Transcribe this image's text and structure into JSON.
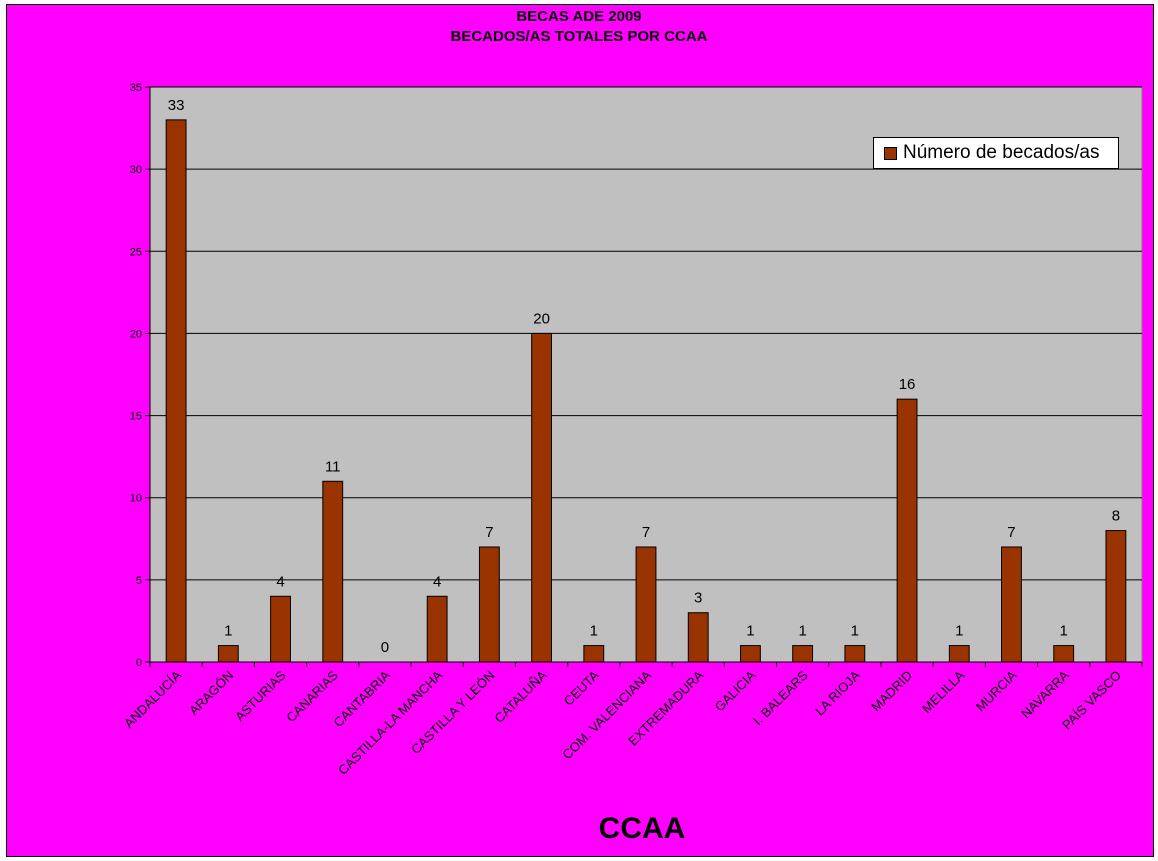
{
  "chart_data": {
    "type": "bar",
    "title": "BECAS ADE 2009",
    "subtitle": "BECADOS/AS TOTALES POR CCAA",
    "xlabel": "CCAA",
    "ylabel": "",
    "ylim": [
      0,
      35
    ],
    "yticks": [
      0,
      5,
      10,
      15,
      20,
      25,
      30,
      35
    ],
    "grid": true,
    "legend_position": "top-right",
    "categories": [
      "ANDALUCÍA",
      "ARAGÓN",
      "ASTURIAS",
      "CANARIAS",
      "CANTABRIA",
      "CASTILLA-LA MANCHA",
      "CASTILLA Y LEÓN",
      "CATALUÑA",
      "CEUTA",
      "COM. VALENCIANA",
      "EXTREMADURA",
      "GALICIA",
      "I. BALEARS",
      "LA RIOJA",
      "MADRID",
      "MELILLA",
      "MURCIA",
      "NAVARRA",
      "PAÍS VASCO"
    ],
    "series": [
      {
        "name": "Número de becados/as",
        "color": "#993300",
        "values": [
          33,
          1,
          4,
          11,
          0,
          4,
          7,
          20,
          1,
          7,
          3,
          1,
          1,
          1,
          16,
          1,
          7,
          1,
          8
        ]
      }
    ]
  },
  "colors": {
    "background": "#ff00ff",
    "plot_area": "#c0c0c0",
    "bar": "#993300"
  }
}
